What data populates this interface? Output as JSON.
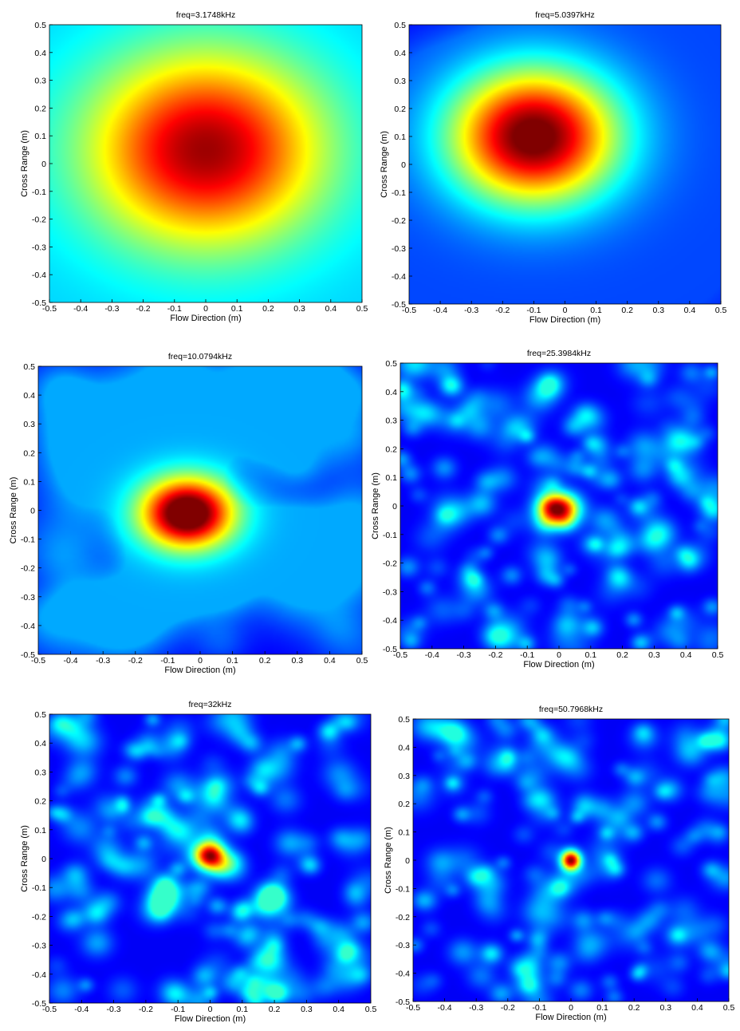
{
  "chart_data": [
    {
      "type": "heatmap",
      "title": "freq=3.1748kHz",
      "xlabel": "Flow Direction (m)",
      "ylabel": "Cross Range (m)",
      "xlim": [
        -0.5,
        0.5
      ],
      "ylim": [
        -0.5,
        0.5
      ],
      "xticks": [
        "-0.5",
        "-0.4",
        "-0.3",
        "-0.2",
        "-0.1",
        "0",
        "0.1",
        "0.2",
        "0.3",
        "0.4",
        "0.5"
      ],
      "yticks": [
        "0.5",
        "0.4",
        "0.3",
        "0.2",
        "0.1",
        "0",
        "-0.1",
        "-0.2",
        "-0.3",
        "-0.4",
        "-0.5"
      ],
      "colormap": "jet",
      "peak": {
        "x": 0.0,
        "y": 0.05
      },
      "peak_spread_m": [
        0.26,
        0.24
      ],
      "background_noise": 0.0,
      "grid": false
    },
    {
      "type": "heatmap",
      "title": "freq=5.0397kHz",
      "xlabel": "Flow Direction (m)",
      "ylabel": "Cross Range (m)",
      "xlim": [
        -0.5,
        0.5
      ],
      "ylim": [
        -0.5,
        0.5
      ],
      "xticks": [
        "-0.5",
        "-0.4",
        "-0.3",
        "-0.2",
        "-0.1",
        "0",
        "0.1",
        "0.2",
        "0.3",
        "0.4",
        "0.5"
      ],
      "yticks": [
        "0.5",
        "0.4",
        "0.3",
        "0.2",
        "0.1",
        "0",
        "-0.1",
        "-0.2",
        "-0.3",
        "-0.4",
        "-0.5"
      ],
      "colormap": "jet",
      "peak": {
        "x": -0.1,
        "y": 0.1
      },
      "peak_spread_m": [
        0.19,
        0.17
      ],
      "background_noise": 0.08,
      "grid": false
    },
    {
      "type": "heatmap",
      "title": "freq=10.0794kHz",
      "xlabel": "Flow Direction (m)",
      "ylabel": "Cross Range (m)",
      "xlim": [
        -0.5,
        0.5
      ],
      "ylim": [
        -0.5,
        0.5
      ],
      "xticks": [
        "-0.5",
        "-0.4",
        "-0.3",
        "-0.2",
        "-0.1",
        "0",
        "0.1",
        "0.2",
        "0.3",
        "0.4",
        "0.5"
      ],
      "yticks": [
        "0.5",
        "0.4",
        "0.3",
        "0.2",
        "0.1",
        "0",
        "-0.1",
        "-0.2",
        "-0.3",
        "-0.4",
        "-0.5"
      ],
      "colormap": "jet",
      "peak": {
        "x": -0.04,
        "y": -0.01
      },
      "peak_spread_m": [
        0.1,
        0.085
      ],
      "background_noise": 0.18,
      "grid": false
    },
    {
      "type": "heatmap",
      "title": "freq=25.3984kHz",
      "xlabel": "Flow Direction (m)",
      "ylabel": "Cross Range (m)",
      "xlim": [
        -0.5,
        0.5
      ],
      "ylim": [
        -0.5,
        0.5
      ],
      "xticks": [
        "-0.5",
        "-0.4",
        "-0.3",
        "-0.2",
        "-0.1",
        "0",
        "0.1",
        "0.2",
        "0.3",
        "0.4",
        "0.5"
      ],
      "yticks": [
        "0.5",
        "0.4",
        "0.3",
        "0.2",
        "0.1",
        "0",
        "-0.1",
        "-0.2",
        "-0.3",
        "-0.4",
        "-0.5"
      ],
      "colormap": "jet",
      "peak": {
        "x": 0.0,
        "y": -0.01
      },
      "peak_spread_m": [
        0.045,
        0.04
      ],
      "background_noise": 0.3,
      "grid": false
    },
    {
      "type": "heatmap",
      "title": "freq=32kHz",
      "xlabel": "Flow Direction (m)",
      "ylabel": "Cross Range (m)",
      "xlim": [
        -0.5,
        0.5
      ],
      "ylim": [
        -0.5,
        0.5
      ],
      "xticks": [
        "-0.5",
        "-0.4",
        "-0.3",
        "-0.2",
        "-0.1",
        "0",
        "0.1",
        "0.2",
        "0.3",
        "0.4",
        "0.5"
      ],
      "yticks": [
        "0.5",
        "0.4",
        "0.3",
        "0.2",
        "0.1",
        "0",
        "-0.1",
        "-0.2",
        "-0.3",
        "-0.4",
        "-0.5"
      ],
      "colormap": "jet",
      "peak": {
        "x": 0.0,
        "y": 0.01
      },
      "peak_spread_m": [
        0.035,
        0.035
      ],
      "background_noise": 0.32,
      "grid": false
    },
    {
      "type": "heatmap",
      "title": "freq=50.7968kHz",
      "xlabel": "Flow Direction (m)",
      "ylabel": "Cross Range (m)",
      "xlim": [
        -0.5,
        0.5
      ],
      "ylim": [
        -0.5,
        0.5
      ],
      "xticks": [
        "-0.5",
        "-0.4",
        "-0.3",
        "-0.2",
        "-0.1",
        "0",
        "0.1",
        "0.2",
        "0.3",
        "0.4",
        "0.5"
      ],
      "yticks": [
        "0.5",
        "0.4",
        "0.3",
        "0.2",
        "0.1",
        "0",
        "-0.1",
        "-0.2",
        "-0.3",
        "-0.4",
        "-0.5"
      ],
      "colormap": "jet",
      "peak": {
        "x": 0.0,
        "y": 0.0
      },
      "peak_spread_m": [
        0.022,
        0.025
      ],
      "background_noise": 0.3,
      "grid": false
    }
  ]
}
